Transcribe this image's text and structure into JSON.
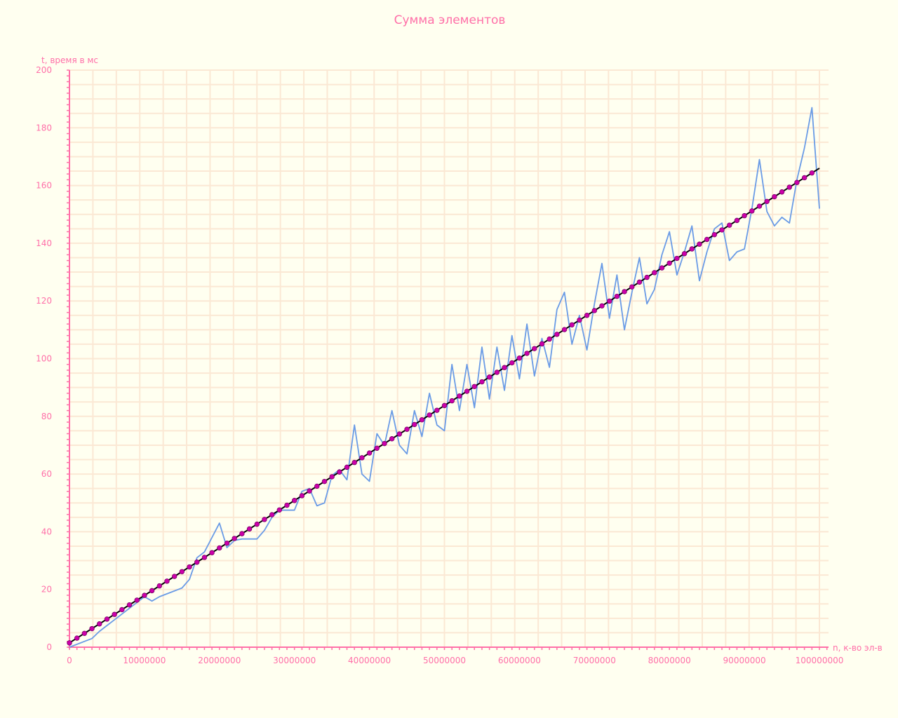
{
  "chart_data": {
    "type": "line",
    "title": "Сумма элементов",
    "xlabel": "n, к-во эл-в",
    "ylabel": "t, время в мс",
    "xlim": [
      0,
      100000000
    ],
    "ylim": [
      0,
      200
    ],
    "x_ticks": [
      "0",
      "10000000",
      "20000000",
      "30000000",
      "40000000",
      "50000000",
      "60000000",
      "70000000",
      "80000000",
      "90000000",
      "100000000"
    ],
    "y_ticks": [
      "0",
      "20",
      "40",
      "60",
      "80",
      "100",
      "120",
      "140",
      "160",
      "180",
      "200"
    ],
    "grid": true,
    "legend": "none",
    "colors": {
      "background": "#fffff0",
      "grid": "#fbe8d4",
      "axis": "#ff6fa8",
      "measured": "#6a9be6",
      "fit_line": "#000000",
      "fit_points": "#cc00aa"
    },
    "series": [
      {
        "kind": "measured",
        "x": [
          0,
          3000000,
          4000000,
          5000000,
          6000000,
          7000000,
          8000000,
          9000000,
          10000000,
          11000000,
          12000000,
          13000000,
          14000000,
          15000000,
          16000000,
          17000000,
          18000000,
          19000000,
          20000000,
          21000000,
          22000000,
          23000000,
          24000000,
          25000000,
          26000000,
          27000000,
          28000000,
          29000000,
          30000000,
          31000000,
          32000000,
          33000000,
          34000000,
          35000000,
          36000000,
          37000000,
          38000000,
          39000000,
          40000000,
          41000000,
          42000000,
          43000000,
          44000000,
          45000000,
          46000000,
          47000000,
          48000000,
          49000000,
          50000000,
          51000000,
          52000000,
          53000000,
          54000000,
          55000000,
          56000000,
          57000000,
          58000000,
          59000000,
          60000000,
          61000000,
          62000000,
          63000000,
          64000000,
          65000000,
          66000000,
          67000000,
          68000000,
          69000000,
          70000000,
          71000000,
          72000000,
          73000000,
          74000000,
          75000000,
          76000000,
          77000000,
          78000000,
          79000000,
          80000000,
          81000000,
          82000000,
          83000000,
          84000000,
          85000000,
          86000000,
          87000000,
          88000000,
          89000000,
          90000000,
          91000000,
          92000000,
          93000000,
          94000000,
          95000000,
          96000000,
          97000000,
          98000000,
          99000000,
          100000000
        ],
        "y": [
          0,
          3,
          5.5,
          7.5,
          9.5,
          11.5,
          13.5,
          15.5,
          17.5,
          16,
          17.5,
          18.5,
          19.5,
          20.5,
          23.5,
          31,
          33,
          38,
          43,
          34.5,
          37,
          37.5,
          37.5,
          37.5,
          40.5,
          45,
          47.5,
          47.5,
          47.5,
          54,
          55,
          49,
          50,
          59.5,
          61.5,
          58,
          77,
          60,
          57.5,
          74,
          70,
          82,
          70,
          67,
          82,
          73,
          88,
          77,
          75,
          98,
          82,
          98,
          83,
          104,
          86,
          104,
          89,
          108,
          93,
          112,
          94,
          107,
          97,
          117,
          123,
          105,
          115,
          103,
          119,
          133,
          114,
          129,
          110,
          123,
          135,
          119,
          124,
          136,
          144,
          129,
          137,
          146,
          127,
          137,
          145,
          147,
          134,
          137,
          138,
          152,
          169,
          151,
          146,
          149,
          147,
          162,
          173,
          187,
          152
        ]
      },
      {
        "kind": "linear-fit",
        "x0": 0,
        "y0": 1.5,
        "x1": 100000000,
        "y1": 166,
        "point_step": 1000000
      }
    ]
  }
}
